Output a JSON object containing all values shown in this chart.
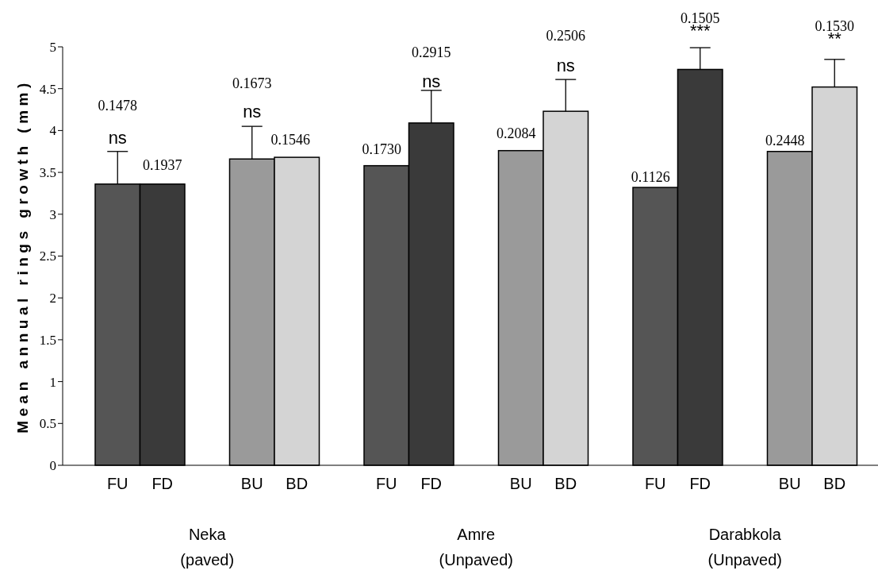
{
  "chart_data": {
    "type": "bar",
    "ylabel": "Mean annual rings growth (mm)",
    "categories": [
      "FU",
      "FD",
      "BU",
      "BD",
      "FU",
      "FD",
      "BU",
      "BD",
      "FU",
      "FD",
      "BU",
      "BD"
    ],
    "values": [
      3.36,
      3.36,
      3.66,
      3.68,
      3.58,
      4.09,
      3.76,
      4.23,
      3.32,
      4.73,
      3.75,
      4.52
    ],
    "colors": [
      "#555555",
      "#3a3a3a",
      "#9a9a9a",
      "#d4d4d4",
      "#555555",
      "#3a3a3a",
      "#9a9a9a",
      "#d4d4d4",
      "#555555",
      "#3a3a3a",
      "#9a9a9a",
      "#d4d4d4"
    ],
    "errors": [
      [
        3.36,
        3.75
      ],
      null,
      [
        3.66,
        4.05
      ],
      null,
      null,
      [
        4.09,
        4.48
      ],
      null,
      [
        4.23,
        4.61
      ],
      null,
      [
        4.73,
        4.99
      ],
      null,
      [
        4.52,
        4.85
      ]
    ],
    "ylim": [
      0,
      5
    ],
    "yticks": [
      0,
      0.5,
      1,
      1.5,
      2,
      2.5,
      3,
      3.5,
      4,
      4.5,
      5
    ],
    "grid": false,
    "annotations": [
      "0.1478",
      "ns",
      "0.1937",
      "0.1673",
      "ns",
      "0.1546",
      "0.1730",
      "0.2915",
      "ns",
      "0.2084",
      "0.2506",
      "ns",
      "0.1126",
      "0.1505",
      "***",
      "0.2448",
      "0.1530",
      "**",
      "Neka\n(paved)",
      "Amre\n(Unpaved)",
      "Darabkola\n(Unpaved)"
    ]
  }
}
